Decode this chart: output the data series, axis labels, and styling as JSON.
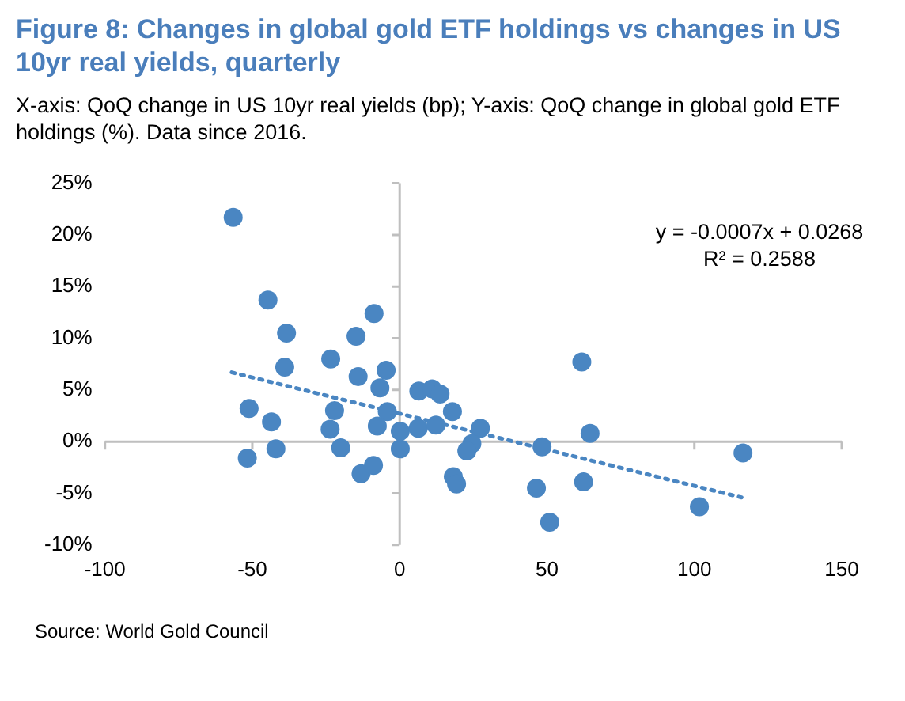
{
  "chart_data": {
    "type": "scatter",
    "title": "Figure 8: Changes in global gold ETF holdings vs changes in US 10yr real yields, quarterly",
    "subtitle": "X-axis: QoQ change in US 10yr real yields (bp); Y-axis: QoQ change in global gold ETF holdings (%). Data since 2016.",
    "annotations": [
      "y = -0.0007x + 0.0268",
      "R² = 0.2588",
      "Source: World Gold Council"
    ],
    "xlim": [
      -100,
      150
    ],
    "xticks": [
      -100,
      -50,
      0,
      50,
      100,
      150
    ],
    "ylim": [
      -10,
      25
    ],
    "yticks": [
      {
        "value": -10,
        "label": "-10%"
      },
      {
        "value": -5,
        "label": "-5%"
      },
      {
        "value": 0,
        "label": "0%"
      },
      {
        "value": 5,
        "label": "5%"
      },
      {
        "value": 10,
        "label": "10%"
      },
      {
        "value": 15,
        "label": "15%"
      },
      {
        "value": 20,
        "label": "20%"
      },
      {
        "value": 25,
        "label": "25%"
      }
    ],
    "legend": false,
    "marker": "circle",
    "series": [
      {
        "color": "#4a86c2",
        "x": [
          -56.5,
          -44.7,
          -38.4,
          -39,
          -51.1,
          -43.5,
          -51.7,
          -42,
          -23.4,
          -14.8,
          -8.7,
          -14.1,
          -4.6,
          -6.7,
          -22.1,
          -23.6,
          -20,
          -4.2,
          -7.6,
          -13.1,
          -8.9,
          0.2,
          0.2,
          6.5,
          11,
          13.7,
          6.3,
          12.3,
          17.9,
          27.4,
          24.5,
          22.8,
          18.2,
          19.3,
          61.8,
          64.6,
          48.3,
          46.4,
          62.4,
          50.9,
          101.7,
          116.5
        ],
        "values": [
          21.7,
          13.7,
          10.5,
          7.2,
          3.2,
          1.9,
          -1.6,
          -0.7,
          8,
          10.2,
          12.4,
          6.3,
          6.9,
          5.2,
          3,
          1.2,
          -0.6,
          2.9,
          1.5,
          -3.1,
          -2.3,
          1,
          -0.7,
          4.9,
          5.1,
          4.6,
          1.3,
          1.6,
          2.9,
          1.3,
          -0.2,
          -0.9,
          -3.4,
          -4.1,
          7.7,
          0.8,
          -0.5,
          -4.5,
          -3.9,
          -7.8,
          -6.3,
          -1.1
        ]
      },
      {
        "type": "line",
        "line_style": "dotted",
        "marker": "none",
        "color": "#4a86c2",
        "x": [
          -57,
          116
        ],
        "values": [
          6.7,
          -5.4
        ]
      }
    ]
  }
}
